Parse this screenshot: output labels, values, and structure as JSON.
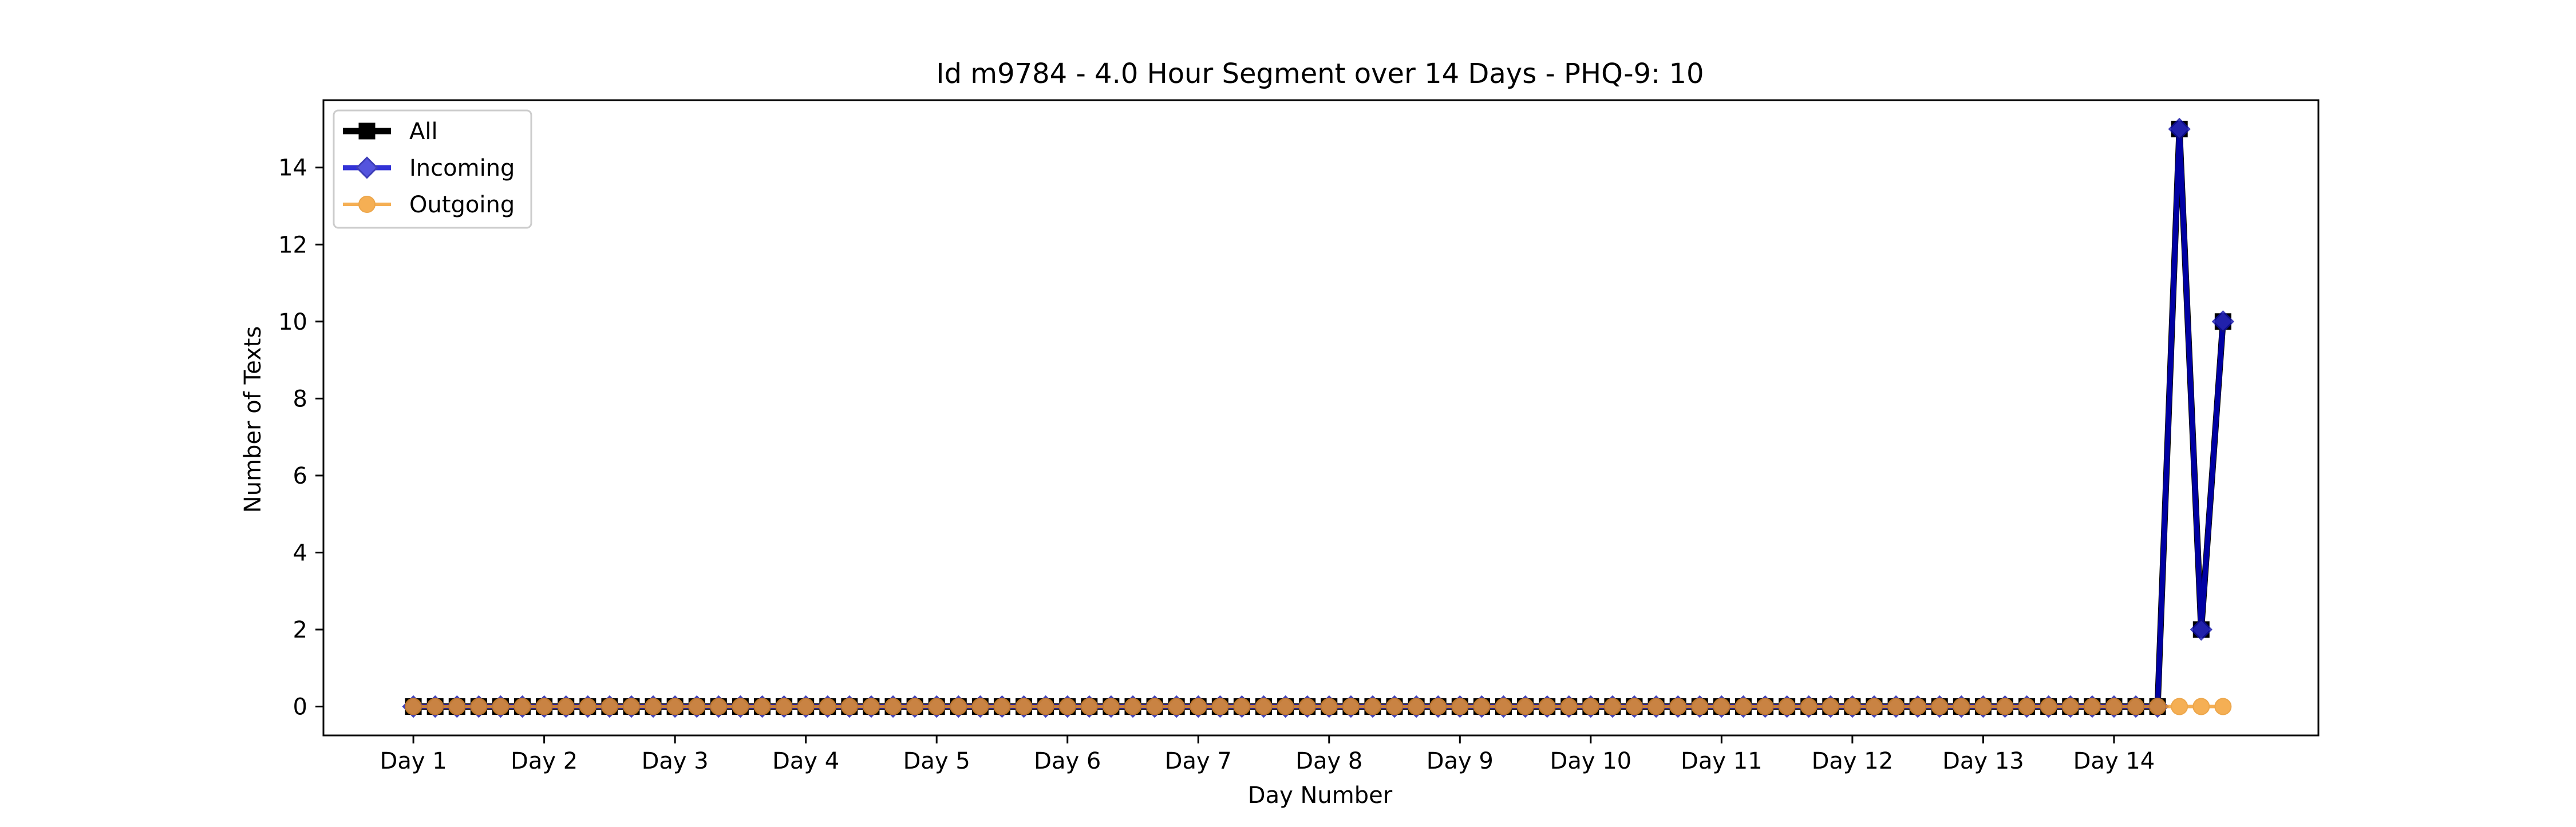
{
  "chart_data": {
    "type": "line",
    "title": "Id m9784 - 4.0 Hour Segment over 14 Days - PHQ-9: 10",
    "xlabel": "Day Number",
    "ylabel": "Number of Texts",
    "x_tick_labels": [
      "Day 1",
      "Day 2",
      "Day 3",
      "Day 4",
      "Day 5",
      "Day 6",
      "Day 7",
      "Day 8",
      "Day 9",
      "Day 10",
      "Day 11",
      "Day 12",
      "Day 13",
      "Day 14"
    ],
    "y_ticks": [
      0,
      2,
      4,
      6,
      8,
      10,
      12,
      14
    ],
    "ylim": [
      -0.75,
      15.75
    ],
    "xlim": [
      -0.6875,
      14.5625
    ],
    "segments_per_day": 6,
    "x": [
      0,
      0.1667,
      0.3333,
      0.5,
      0.6667,
      0.8333,
      1,
      1.1667,
      1.3333,
      1.5,
      1.6667,
      1.8333,
      2,
      2.1667,
      2.3333,
      2.5,
      2.6667,
      2.8333,
      3,
      3.1667,
      3.3333,
      3.5,
      3.6667,
      3.8333,
      4,
      4.1667,
      4.3333,
      4.5,
      4.6667,
      4.8333,
      5,
      5.1667,
      5.3333,
      5.5,
      5.6667,
      5.8333,
      6,
      6.1667,
      6.3333,
      6.5,
      6.6667,
      6.8333,
      7,
      7.1667,
      7.3333,
      7.5,
      7.6667,
      7.8333,
      8,
      8.1667,
      8.3333,
      8.5,
      8.6667,
      8.8333,
      9,
      9.1667,
      9.3333,
      9.5,
      9.6667,
      9.8333,
      10,
      10.1667,
      10.3333,
      10.5,
      10.6667,
      10.8333,
      11,
      11.1667,
      11.3333,
      11.5,
      11.6667,
      11.8333,
      12,
      12.1667,
      12.3333,
      12.5,
      12.6667,
      12.8333,
      13,
      13.1667,
      13.3333,
      13.5,
      13.6667,
      13.8333
    ],
    "series": [
      {
        "name": "All",
        "color": "#000000",
        "marker": "square",
        "values": [
          0,
          0,
          0,
          0,
          0,
          0,
          0,
          0,
          0,
          0,
          0,
          0,
          0,
          0,
          0,
          0,
          0,
          0,
          0,
          0,
          0,
          0,
          0,
          0,
          0,
          0,
          0,
          0,
          0,
          0,
          0,
          0,
          0,
          0,
          0,
          0,
          0,
          0,
          0,
          0,
          0,
          0,
          0,
          0,
          0,
          0,
          0,
          0,
          0,
          0,
          0,
          0,
          0,
          0,
          0,
          0,
          0,
          0,
          0,
          0,
          0,
          0,
          0,
          0,
          0,
          0,
          0,
          0,
          0,
          0,
          0,
          0,
          0,
          0,
          0,
          0,
          0,
          0,
          0,
          0,
          0,
          15,
          2,
          10
        ]
      },
      {
        "name": "Incoming",
        "color": "#0000cc",
        "marker": "diamond",
        "values": [
          0,
          0,
          0,
          0,
          0,
          0,
          0,
          0,
          0,
          0,
          0,
          0,
          0,
          0,
          0,
          0,
          0,
          0,
          0,
          0,
          0,
          0,
          0,
          0,
          0,
          0,
          0,
          0,
          0,
          0,
          0,
          0,
          0,
          0,
          0,
          0,
          0,
          0,
          0,
          0,
          0,
          0,
          0,
          0,
          0,
          0,
          0,
          0,
          0,
          0,
          0,
          0,
          0,
          0,
          0,
          0,
          0,
          0,
          0,
          0,
          0,
          0,
          0,
          0,
          0,
          0,
          0,
          0,
          0,
          0,
          0,
          0,
          0,
          0,
          0,
          0,
          0,
          0,
          0,
          0,
          0,
          15,
          2,
          10
        ]
      },
      {
        "name": "Outgoing",
        "color": "#f39c2a",
        "marker": "circle",
        "values": [
          0,
          0,
          0,
          0,
          0,
          0,
          0,
          0,
          0,
          0,
          0,
          0,
          0,
          0,
          0,
          0,
          0,
          0,
          0,
          0,
          0,
          0,
          0,
          0,
          0,
          0,
          0,
          0,
          0,
          0,
          0,
          0,
          0,
          0,
          0,
          0,
          0,
          0,
          0,
          0,
          0,
          0,
          0,
          0,
          0,
          0,
          0,
          0,
          0,
          0,
          0,
          0,
          0,
          0,
          0,
          0,
          0,
          0,
          0,
          0,
          0,
          0,
          0,
          0,
          0,
          0,
          0,
          0,
          0,
          0,
          0,
          0,
          0,
          0,
          0,
          0,
          0,
          0,
          0,
          0,
          0,
          0,
          0,
          0
        ]
      }
    ],
    "legend_position": "top-left",
    "grid": false
  }
}
